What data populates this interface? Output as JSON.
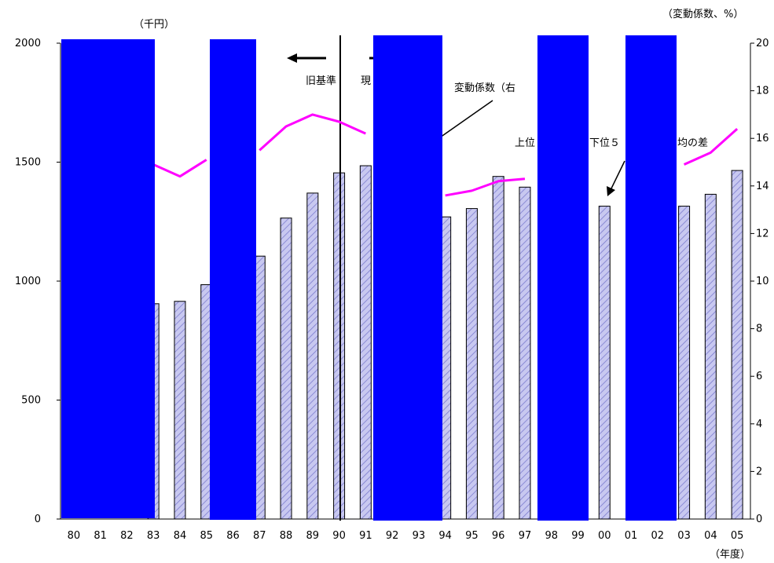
{
  "chart_data": {
    "type": "bar",
    "title": "",
    "left_unit_label": "（千円）",
    "right_unit_label": "（変動係数、%）",
    "xlabel": "（年度）",
    "categories": [
      "80",
      "81",
      "82",
      "83",
      "84",
      "85",
      "86",
      "87",
      "88",
      "89",
      "90",
      "91",
      "92",
      "93",
      "94",
      "95",
      "96",
      "97",
      "98",
      "99",
      "00",
      "01",
      "02",
      "03",
      "04",
      "05"
    ],
    "ylim": [
      0,
      2000
    ],
    "y_ticks": [
      "0",
      "500",
      "1000",
      "1500",
      "2000"
    ],
    "y2lim": [
      0,
      20
    ],
    "y2_ticks": [
      "0",
      "2",
      "4",
      "6",
      "8",
      "10",
      "12",
      "14",
      "16",
      "18",
      "20"
    ],
    "series": [
      {
        "kind": "bar",
        "axis": "left",
        "values": [
          null,
          null,
          null,
          905,
          915,
          985,
          null,
          1105,
          1265,
          1370,
          1455,
          1485,
          null,
          null,
          1270,
          1305,
          1440,
          1395,
          null,
          null,
          1315,
          null,
          null,
          1315,
          1365,
          1465
        ]
      },
      {
        "kind": "line",
        "axis": "right",
        "values": [
          null,
          null,
          null,
          14.9,
          14.4,
          15.1,
          null,
          15.5,
          16.5,
          17.0,
          16.7,
          16.2,
          null,
          null,
          13.6,
          13.8,
          14.2,
          14.3,
          null,
          null,
          14.1,
          null,
          null,
          14.9,
          15.4,
          16.4
        ]
      }
    ],
    "annotations": {
      "old_standard": "旧基準",
      "current_standard": "現",
      "cv_label": "変動係数（右",
      "gap_label_a": "上位",
      "gap_label_b": "下位５",
      "gap_label_c": "均の差"
    },
    "grid": false,
    "legend": "none",
    "colors": {
      "bar_fill": "#c8c8f0",
      "bar_stroke": "#000000",
      "hatch": "#7777cc",
      "line": "#ff00ff",
      "redaction": "#0000ff"
    }
  }
}
